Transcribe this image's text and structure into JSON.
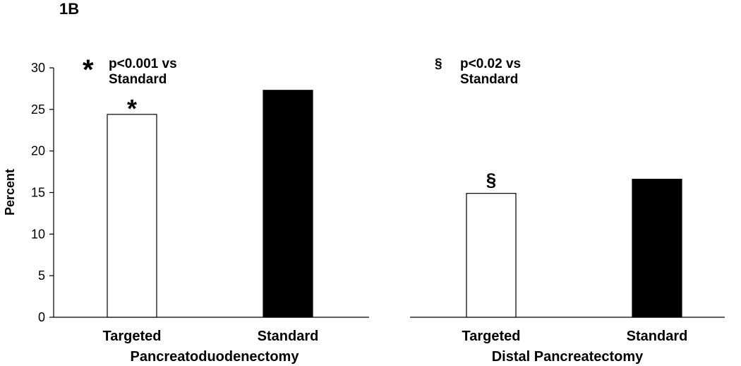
{
  "figure_label": "1B",
  "chart_data": {
    "type": "bar",
    "ylabel": "Percent",
    "ylim": [
      0,
      30
    ],
    "yticks": [
      0,
      5,
      10,
      15,
      20,
      25,
      30
    ],
    "groups": [
      {
        "name": "Pancreatoduodenectomy",
        "categories": [
          "Targeted",
          "Standard"
        ],
        "values": [
          24.4,
          27.3
        ],
        "fill": [
          "#ffffff",
          "#000000"
        ],
        "bar_markers": [
          "*",
          ""
        ],
        "annotation": {
          "symbol": "*",
          "line1": "p<0.001 vs",
          "line2": "Standard"
        }
      },
      {
        "name": "Distal Pancreatectomy",
        "categories": [
          "Targeted",
          "Standard"
        ],
        "values": [
          14.9,
          16.6
        ],
        "fill": [
          "#ffffff",
          "#000000"
        ],
        "bar_markers": [
          "§",
          ""
        ],
        "annotation": {
          "symbol": "§",
          "line1": "p<0.02 vs",
          "line2": "Standard"
        }
      }
    ]
  }
}
